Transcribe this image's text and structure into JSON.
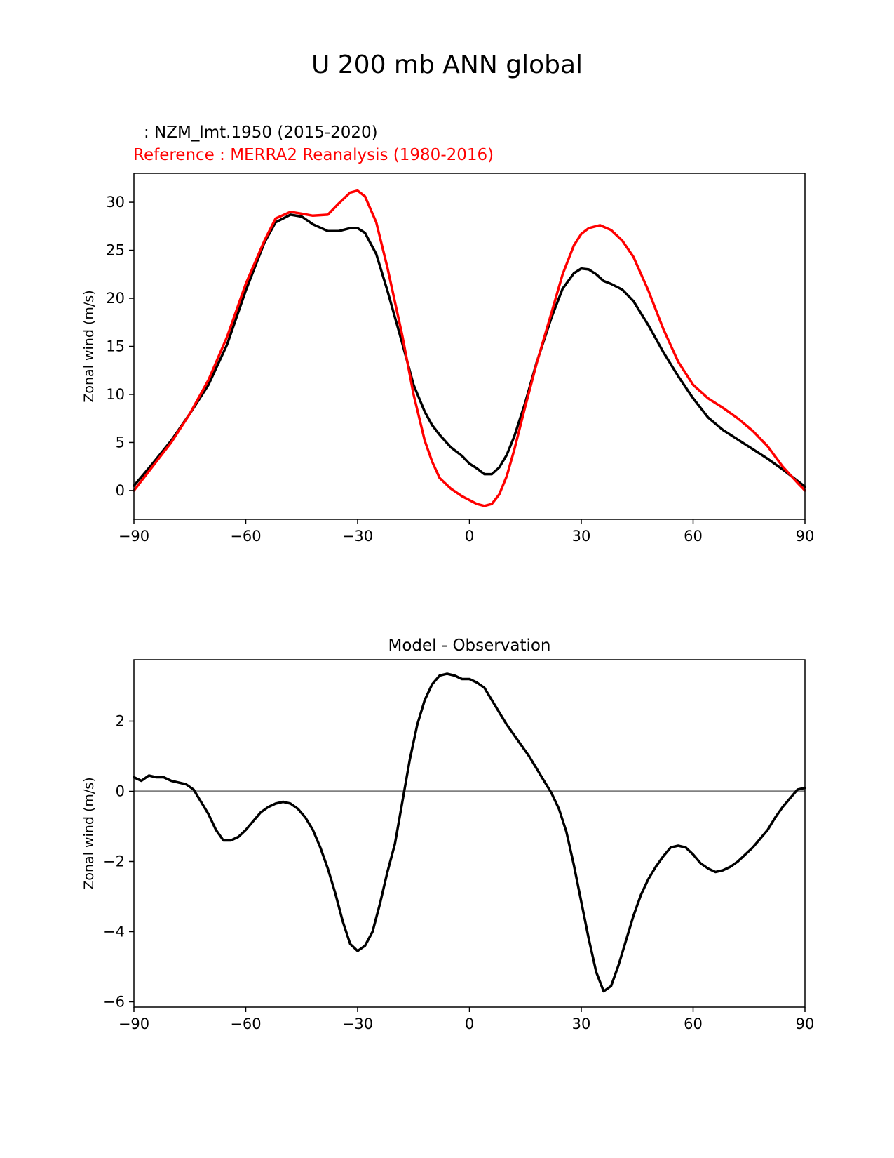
{
  "figure": {
    "suptitle": "U 200 mb ANN global"
  },
  "chart_data": [
    {
      "type": "line",
      "test_label": ": NZM_lmt.1950 (2015-2020)",
      "reference_label": "Reference : MERRA2 Reanalysis (1980-2016)",
      "xlabel": "",
      "ylabel": "Zonal wind (m/s)",
      "xlim": [
        -90,
        90
      ],
      "ylim": [
        -3,
        33
      ],
      "xticks": [
        -90,
        -60,
        -30,
        0,
        30,
        60,
        90
      ],
      "xtick_labels": [
        "−90",
        "−60",
        "−30",
        "0",
        "30",
        "60",
        "90"
      ],
      "yticks": [
        0,
        5,
        10,
        15,
        20,
        25,
        30
      ],
      "ytick_labels": [
        "0",
        "5",
        "10",
        "15",
        "20",
        "25",
        "30"
      ],
      "series": [
        {
          "name": "NZM_lmt.1950 (2015-2020)",
          "color": "#000000",
          "x": [
            -90,
            -85,
            -80,
            -75,
            -70,
            -65,
            -60,
            -55,
            -52,
            -48,
            -45,
            -42,
            -38,
            -35,
            -32,
            -30,
            -28,
            -25,
            -22,
            -18,
            -15,
            -12,
            -10,
            -8,
            -5,
            -2,
            0,
            2,
            4,
            6,
            8,
            10,
            12,
            15,
            18,
            22,
            25,
            28,
            30,
            32,
            34,
            36,
            38,
            41,
            44,
            48,
            52,
            56,
            60,
            64,
            68,
            72,
            76,
            80,
            84,
            88,
            90
          ],
          "y": [
            0.5,
            2.8,
            5.2,
            8.0,
            11.0,
            15.2,
            20.8,
            25.8,
            27.9,
            28.7,
            28.5,
            27.7,
            27.0,
            27.0,
            27.3,
            27.3,
            26.8,
            24.6,
            20.8,
            15.3,
            11.0,
            8.2,
            6.8,
            5.8,
            4.5,
            3.6,
            2.8,
            2.3,
            1.7,
            1.7,
            2.4,
            3.7,
            5.6,
            9.2,
            13.3,
            18.0,
            21.0,
            22.6,
            23.1,
            23.0,
            22.5,
            21.8,
            21.5,
            20.9,
            19.7,
            17.2,
            14.4,
            11.9,
            9.6,
            7.6,
            6.3,
            5.3,
            4.3,
            3.3,
            2.2,
            1.0,
            0.4
          ]
        },
        {
          "name": "Reference : MERRA2 Reanalysis (1980-2016)",
          "color": "#ff0000",
          "x": [
            -90,
            -85,
            -80,
            -75,
            -70,
            -65,
            -60,
            -55,
            -52,
            -48,
            -45,
            -42,
            -38,
            -35,
            -32,
            -30,
            -28,
            -25,
            -22,
            -18,
            -15,
            -12,
            -10,
            -8,
            -5,
            -2,
            0,
            2,
            4,
            6,
            8,
            10,
            12,
            15,
            18,
            22,
            25,
            28,
            30,
            32,
            35,
            38,
            41,
            44,
            48,
            52,
            56,
            60,
            64,
            68,
            72,
            76,
            80,
            84,
            88,
            90
          ],
          "y": [
            0.0,
            2.5,
            5.0,
            8.0,
            11.5,
            16.0,
            21.5,
            26.0,
            28.3,
            29.0,
            28.8,
            28.6,
            28.7,
            29.9,
            31.0,
            31.2,
            30.6,
            27.9,
            23.2,
            16.1,
            10.0,
            5.2,
            3.0,
            1.3,
            0.2,
            -0.6,
            -1.0,
            -1.4,
            -1.6,
            -1.4,
            -0.4,
            1.5,
            4.2,
            8.8,
            13.2,
            18.5,
            22.5,
            25.5,
            26.7,
            27.3,
            27.6,
            27.1,
            26.0,
            24.3,
            20.8,
            16.8,
            13.4,
            11.0,
            9.6,
            8.6,
            7.5,
            6.2,
            4.6,
            2.5,
            0.8,
            0.0
          ]
        }
      ]
    },
    {
      "type": "line",
      "title": "Model - Observation",
      "xlabel": "",
      "ylabel": "Zonal wind (m/s)",
      "xlim": [
        -90,
        90
      ],
      "ylim": [
        -6.15,
        3.75
      ],
      "xticks": [
        -90,
        -60,
        -30,
        0,
        30,
        60,
        90
      ],
      "xtick_labels": [
        "−90",
        "−60",
        "−30",
        "0",
        "30",
        "60",
        "90"
      ],
      "yticks": [
        -6,
        -4,
        -2,
        0,
        2
      ],
      "ytick_labels": [
        "−6",
        "−4",
        "−2",
        "0",
        "2"
      ],
      "zero_line": {
        "y": 0,
        "color": "#808080"
      },
      "series": [
        {
          "name": "Model - Observation",
          "color": "#000000",
          "x": [
            -90,
            -88,
            -86,
            -84,
            -82,
            -80,
            -78,
            -76,
            -74,
            -72,
            -70,
            -68,
            -66,
            -64,
            -62,
            -60,
            -58,
            -56,
            -54,
            -52,
            -50,
            -48,
            -46,
            -44,
            -42,
            -40,
            -38,
            -36,
            -34,
            -32,
            -30,
            -28,
            -26,
            -24,
            -22,
            -20,
            -18,
            -16,
            -14,
            -12,
            -10,
            -8,
            -6,
            -4,
            -2,
            0,
            2,
            4,
            6,
            8,
            10,
            12,
            14,
            16,
            18,
            20,
            22,
            24,
            26,
            28,
            30,
            32,
            34,
            36,
            38,
            40,
            42,
            44,
            46,
            48,
            50,
            52,
            54,
            56,
            58,
            60,
            62,
            64,
            66,
            68,
            70,
            72,
            74,
            76,
            78,
            80,
            82,
            84,
            86,
            88,
            90
          ],
          "y": [
            0.4,
            0.3,
            0.45,
            0.4,
            0.4,
            0.3,
            0.25,
            0.2,
            0.05,
            -0.3,
            -0.65,
            -1.1,
            -1.4,
            -1.4,
            -1.3,
            -1.1,
            -0.85,
            -0.6,
            -0.45,
            -0.35,
            -0.3,
            -0.35,
            -0.5,
            -0.75,
            -1.1,
            -1.6,
            -2.2,
            -2.9,
            -3.7,
            -4.35,
            -4.55,
            -4.4,
            -4.0,
            -3.2,
            -2.3,
            -1.5,
            -0.3,
            0.9,
            1.9,
            2.6,
            3.05,
            3.3,
            3.35,
            3.3,
            3.2,
            3.2,
            3.1,
            2.95,
            2.6,
            2.25,
            1.9,
            1.6,
            1.3,
            1.0,
            0.65,
            0.3,
            -0.05,
            -0.5,
            -1.15,
            -2.1,
            -3.15,
            -4.2,
            -5.15,
            -5.7,
            -5.55,
            -4.95,
            -4.25,
            -3.55,
            -2.95,
            -2.5,
            -2.15,
            -1.85,
            -1.6,
            -1.55,
            -1.6,
            -1.8,
            -2.05,
            -2.2,
            -2.3,
            -2.25,
            -2.15,
            -2.0,
            -1.8,
            -1.6,
            -1.35,
            -1.1,
            -0.75,
            -0.45,
            -0.2,
            0.05,
            0.1
          ]
        }
      ]
    }
  ]
}
